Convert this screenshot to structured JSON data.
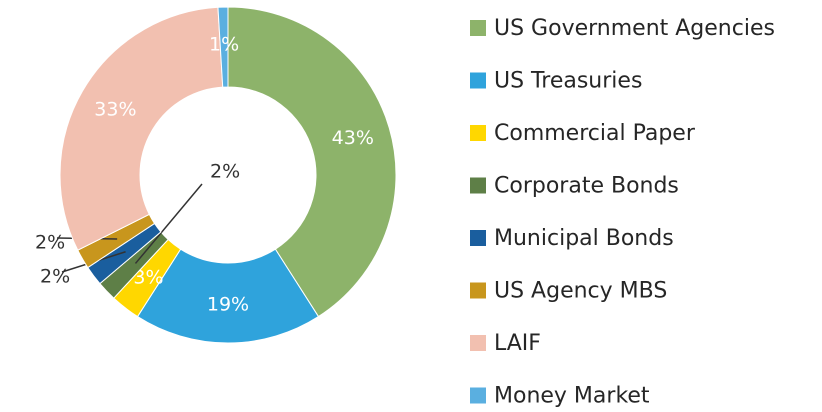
{
  "chart_data": {
    "type": "donut",
    "categories": [
      "US Government Agencies",
      "US Treasuries",
      "Commercial Paper",
      "Corporate Bonds",
      "Municipal Bonds",
      "US Agency MBS",
      "LAIF",
      "Money Market"
    ],
    "values": [
      43,
      19,
      3,
      2,
      2,
      2,
      33,
      1
    ],
    "value_labels": [
      "43%",
      "19%",
      "3%",
      "2%",
      "2%",
      "2%",
      "33%",
      "1%"
    ],
    "colors": [
      "#8db36a",
      "#2fa3dc",
      "#ffd700",
      "#5e7f47",
      "#1a5e9e",
      "#c8961d",
      "#f2c0b0",
      "#5aafe0"
    ],
    "legend": "right"
  }
}
